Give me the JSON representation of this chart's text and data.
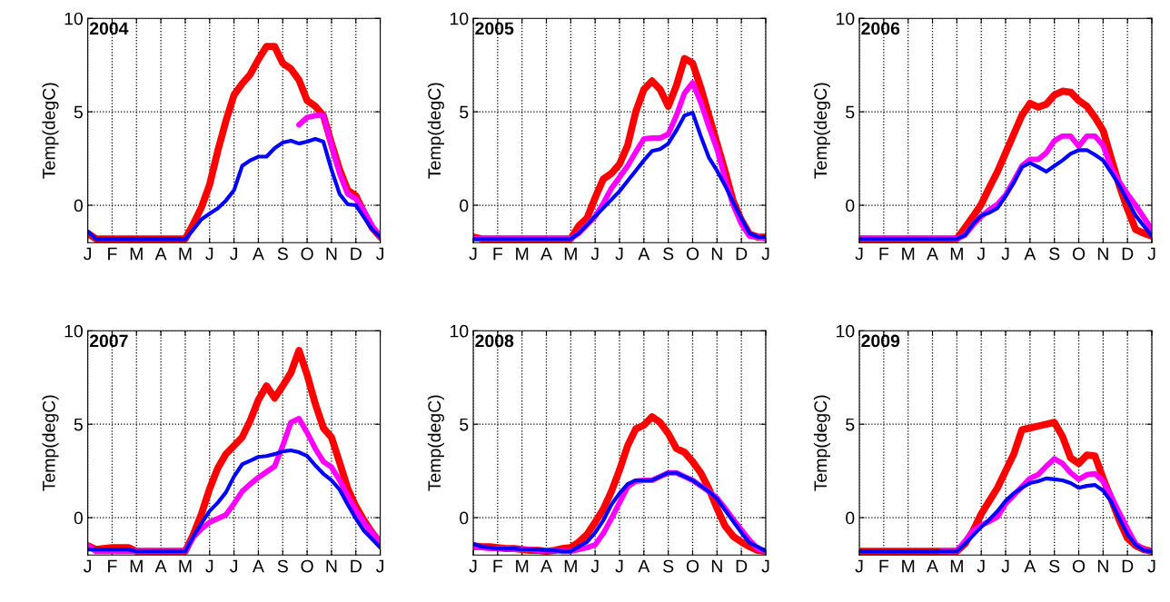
{
  "chart_data": [
    {
      "type": "line",
      "annotations": [
        "2004"
      ],
      "ylabel": "Temp(degC)",
      "ylim": [
        -2,
        10
      ],
      "yticks": [
        0,
        5,
        10
      ],
      "grid": true,
      "line_style": "solid",
      "categories": [
        "J",
        null,
        null,
        "F",
        null,
        null,
        "M",
        null,
        null,
        "A",
        null,
        null,
        "M",
        null,
        null,
        "J",
        null,
        null,
        "J",
        null,
        null,
        "A",
        null,
        null,
        "S",
        null,
        null,
        "O",
        null,
        null,
        "N",
        null,
        null,
        "D",
        null,
        null,
        "J"
      ],
      "series": [
        {
          "color": "#ff0000",
          "values": [
            -1.5,
            -1.8,
            -1.8,
            -1.8,
            -1.8,
            -1.8,
            -1.8,
            -1.8,
            -1.8,
            -1.8,
            -1.8,
            -1.8,
            -1.8,
            -1.0,
            -0.1,
            1.1,
            2.9,
            4.5,
            5.9,
            6.5,
            7.0,
            7.8,
            8.5,
            8.5,
            7.6,
            7.3,
            6.7,
            5.6,
            5.3,
            4.8,
            3.3,
            1.9,
            0.8,
            0.5,
            -0.4,
            -1.2,
            -1.7
          ]
        },
        {
          "color": "#ff00ff",
          "values": [
            null,
            null,
            null,
            null,
            null,
            null,
            null,
            null,
            null,
            null,
            null,
            null,
            null,
            null,
            null,
            null,
            null,
            null,
            null,
            null,
            null,
            null,
            null,
            null,
            null,
            null,
            4.3,
            4.7,
            4.8,
            4.8,
            3.2,
            1.7,
            0.6,
            0.35,
            -0.3,
            -1.1,
            -1.7
          ]
        },
        {
          "color": "#0000ff",
          "values": [
            -1.4,
            -1.8,
            -1.8,
            -1.8,
            -1.8,
            -1.8,
            -1.8,
            -1.8,
            -1.8,
            -1.8,
            -1.8,
            -1.8,
            -1.8,
            -1.3,
            -0.75,
            -0.45,
            -0.17,
            0.25,
            0.8,
            2.1,
            2.4,
            2.6,
            2.6,
            3.05,
            3.35,
            3.45,
            3.3,
            3.4,
            3.55,
            3.4,
            1.9,
            0.6,
            0.05,
            0.0,
            -0.65,
            -1.3,
            -1.7
          ]
        }
      ]
    },
    {
      "type": "line",
      "annotations": [
        "2005"
      ],
      "ylabel": "Temp(degC)",
      "ylim": [
        -2,
        10
      ],
      "yticks": [
        0,
        5,
        10
      ],
      "grid": true,
      "line_style": "solid",
      "categories": [
        "J",
        null,
        null,
        "F",
        null,
        null,
        "M",
        null,
        null,
        "A",
        null,
        null,
        "M",
        null,
        null,
        "J",
        null,
        null,
        "J",
        null,
        null,
        "A",
        null,
        null,
        "S",
        null,
        null,
        "O",
        null,
        null,
        "N",
        null,
        null,
        "D",
        null,
        null,
        "J"
      ],
      "series": [
        {
          "color": "#ff0000",
          "values": [
            -1.7,
            -1.8,
            -1.8,
            -1.8,
            -1.8,
            -1.8,
            -1.8,
            -1.8,
            -1.8,
            -1.8,
            -1.8,
            -1.8,
            -1.8,
            -1.1,
            -0.7,
            0.4,
            1.4,
            1.7,
            2.2,
            3.2,
            5.0,
            6.2,
            6.65,
            6.2,
            5.3,
            6.4,
            7.85,
            7.6,
            6.3,
            4.8,
            3.3,
            1.8,
            0.2,
            -0.8,
            -1.55,
            -1.7,
            -1.7
          ]
        },
        {
          "color": "#ff00ff",
          "values": [
            -1.8,
            -1.8,
            -1.8,
            -1.8,
            -1.8,
            -1.8,
            -1.8,
            -1.8,
            -1.8,
            -1.8,
            -1.8,
            -1.8,
            -1.8,
            -1.5,
            -1.05,
            -0.6,
            0.1,
            0.9,
            1.5,
            2.1,
            2.85,
            3.55,
            3.6,
            3.6,
            3.8,
            4.8,
            6.0,
            6.55,
            5.5,
            4.2,
            3.0,
            1.4,
            0.0,
            -1.0,
            -1.65,
            -1.7,
            -1.8
          ]
        },
        {
          "color": "#0000ff",
          "values": [
            -1.8,
            -1.8,
            -1.8,
            -1.8,
            -1.8,
            -1.8,
            -1.8,
            -1.8,
            -1.8,
            -1.8,
            -1.8,
            -1.8,
            -1.8,
            -1.5,
            -1.05,
            -0.6,
            -0.15,
            0.3,
            0.75,
            1.3,
            1.85,
            2.4,
            2.9,
            3.0,
            3.3,
            4.0,
            4.8,
            4.95,
            3.7,
            2.55,
            1.85,
            1.05,
            0.15,
            -0.7,
            -1.5,
            -1.7,
            -1.7
          ]
        }
      ]
    },
    {
      "type": "line",
      "annotations": [
        "2006"
      ],
      "ylabel": "Temp(degC)",
      "ylim": [
        -2,
        10
      ],
      "yticks": [
        0,
        5,
        10
      ],
      "grid": true,
      "line_style": "solid",
      "categories": [
        "J",
        null,
        null,
        "F",
        null,
        null,
        "M",
        null,
        null,
        "A",
        null,
        null,
        "M",
        null,
        null,
        "J",
        null,
        null,
        "J",
        null,
        null,
        "A",
        null,
        null,
        "S",
        null,
        null,
        "O",
        null,
        null,
        "N",
        null,
        null,
        "D",
        null,
        null,
        "J"
      ],
      "series": [
        {
          "color": "#ff0000",
          "values": [
            -1.8,
            -1.8,
            -1.8,
            -1.8,
            -1.8,
            -1.8,
            -1.8,
            -1.8,
            -1.8,
            -1.8,
            -1.8,
            -1.8,
            -1.8,
            -1.2,
            -0.6,
            0.05,
            0.95,
            1.8,
            2.8,
            3.8,
            4.8,
            5.45,
            5.25,
            5.4,
            5.9,
            6.1,
            6.05,
            5.6,
            5.3,
            4.7,
            4.0,
            2.5,
            1.05,
            -0.2,
            -1.3,
            -1.5,
            -1.65
          ]
        },
        {
          "color": "#ff00ff",
          "values": [
            -1.8,
            -1.8,
            -1.8,
            -1.8,
            -1.8,
            -1.8,
            -1.8,
            -1.8,
            -1.8,
            -1.8,
            -1.8,
            -1.8,
            -1.8,
            -1.6,
            -1.05,
            -0.6,
            -0.25,
            0.05,
            0.55,
            1.3,
            2.1,
            2.45,
            2.45,
            2.8,
            3.45,
            3.7,
            3.7,
            3.15,
            3.7,
            3.7,
            3.2,
            2.0,
            1.25,
            0.6,
            0.0,
            -0.65,
            -1.3
          ]
        },
        {
          "color": "#0000ff",
          "values": [
            -1.8,
            -1.8,
            -1.8,
            -1.8,
            -1.8,
            -1.8,
            -1.8,
            -1.8,
            -1.8,
            -1.8,
            -1.8,
            -1.8,
            -1.8,
            -1.6,
            -1.0,
            -0.55,
            -0.4,
            -0.15,
            0.5,
            1.2,
            2.05,
            2.25,
            2.05,
            1.8,
            2.1,
            2.4,
            2.75,
            2.95,
            2.95,
            2.7,
            2.4,
            1.75,
            1.05,
            0.25,
            -0.55,
            -1.1,
            -1.65
          ]
        }
      ]
    },
    {
      "type": "line",
      "annotations": [
        "2007"
      ],
      "ylabel": "Temp(degC)",
      "ylim": [
        -2,
        10
      ],
      "yticks": [
        0,
        5,
        10
      ],
      "grid": true,
      "line_style": "solid",
      "categories": [
        "J",
        null,
        null,
        "F",
        null,
        null,
        "M",
        null,
        null,
        "A",
        null,
        null,
        "M",
        null,
        null,
        "J",
        null,
        null,
        "J",
        null,
        null,
        "A",
        null,
        null,
        "S",
        null,
        null,
        "O",
        null,
        null,
        "N",
        null,
        null,
        "D",
        null,
        null,
        "J"
      ],
      "series": [
        {
          "color": "#ff0000",
          "values": [
            -1.5,
            -1.7,
            -1.65,
            -1.6,
            -1.6,
            -1.6,
            -1.8,
            -1.8,
            -1.8,
            -1.8,
            -1.8,
            -1.8,
            -1.8,
            -0.9,
            0.2,
            1.55,
            2.65,
            3.4,
            3.85,
            4.3,
            5.2,
            6.3,
            7.05,
            6.4,
            7.05,
            7.75,
            8.95,
            7.65,
            6.1,
            4.8,
            4.3,
            2.95,
            1.55,
            0.6,
            -0.15,
            -0.8,
            -1.35
          ]
        },
        {
          "color": "#ff00ff",
          "values": [
            -1.5,
            -1.8,
            -1.8,
            -1.8,
            -1.8,
            -1.8,
            -1.8,
            -1.8,
            -1.8,
            -1.8,
            -1.8,
            -1.8,
            -1.8,
            -1.05,
            -0.6,
            -0.25,
            -0.05,
            0.15,
            0.75,
            1.4,
            1.8,
            2.15,
            2.45,
            2.75,
            3.85,
            5.1,
            5.3,
            4.55,
            3.7,
            3.0,
            2.7,
            2.0,
            1.15,
            0.4,
            -0.25,
            -0.8,
            -1.35
          ]
        },
        {
          "color": "#0000ff",
          "values": [
            -1.7,
            -1.7,
            -1.7,
            -1.7,
            -1.7,
            -1.7,
            -1.8,
            -1.8,
            -1.8,
            -1.8,
            -1.8,
            -1.8,
            -1.8,
            -1.0,
            -0.3,
            0.35,
            0.8,
            1.35,
            2.2,
            2.85,
            3.05,
            3.25,
            3.3,
            3.4,
            3.55,
            3.6,
            3.5,
            3.3,
            2.8,
            2.35,
            2.0,
            1.5,
            0.7,
            -0.05,
            -0.7,
            -1.15,
            -1.6
          ]
        }
      ]
    },
    {
      "type": "line",
      "annotations": [
        "2008"
      ],
      "ylabel": "Temp(degC)",
      "ylim": [
        -2,
        10
      ],
      "yticks": [
        0,
        5,
        10
      ],
      "grid": true,
      "line_style": "solid",
      "categories": [
        "J",
        null,
        null,
        "F",
        null,
        null,
        "M",
        null,
        null,
        "A",
        null,
        null,
        "M",
        null,
        null,
        "J",
        null,
        null,
        "J",
        null,
        null,
        "A",
        null,
        null,
        "S",
        null,
        null,
        "O",
        null,
        null,
        "N",
        null,
        null,
        "D",
        null,
        null,
        "J"
      ],
      "series": [
        {
          "color": "#ff0000",
          "values": [
            -1.5,
            -1.55,
            -1.55,
            -1.6,
            -1.65,
            -1.65,
            -1.7,
            -1.75,
            -1.75,
            -1.8,
            -1.75,
            -1.65,
            -1.6,
            -1.3,
            -0.9,
            -0.25,
            0.45,
            1.4,
            2.55,
            3.85,
            4.75,
            4.95,
            5.4,
            5.1,
            4.5,
            3.7,
            3.5,
            3.0,
            2.4,
            1.55,
            0.5,
            -0.45,
            -1.0,
            -1.3,
            -1.55,
            -1.75,
            -1.8
          ]
        },
        {
          "color": "#ff00ff",
          "values": [
            -1.6,
            -1.6,
            -1.65,
            -1.65,
            -1.65,
            -1.7,
            -1.7,
            -1.7,
            -1.75,
            -1.75,
            -1.75,
            -1.8,
            -1.8,
            -1.7,
            -1.6,
            -1.45,
            -0.85,
            -0.05,
            0.8,
            1.65,
            1.95,
            2.0,
            2.0,
            2.2,
            2.4,
            2.4,
            2.2,
            2.0,
            1.7,
            1.4,
            1.05,
            0.5,
            -0.1,
            -0.65,
            -1.2,
            -1.65,
            -1.8
          ]
        },
        {
          "color": "#0000ff",
          "values": [
            -1.4,
            -1.55,
            -1.6,
            -1.65,
            -1.65,
            -1.65,
            -1.7,
            -1.7,
            -1.7,
            -1.75,
            -1.75,
            -1.8,
            -1.8,
            -1.55,
            -1.3,
            -0.8,
            -0.15,
            0.7,
            1.3,
            1.8,
            2.0,
            2.0,
            2.0,
            2.2,
            2.4,
            2.4,
            2.2,
            2.0,
            1.7,
            1.4,
            1.0,
            0.4,
            -0.2,
            -0.8,
            -1.35,
            -1.55,
            -1.8
          ]
        }
      ]
    },
    {
      "type": "line",
      "annotations": [
        "2009"
      ],
      "ylabel": "Temp(degC)",
      "ylim": [
        -2,
        10
      ],
      "yticks": [
        0,
        5,
        10
      ],
      "grid": true,
      "line_style": "solid",
      "categories": [
        "J",
        null,
        null,
        "F",
        null,
        null,
        "M",
        null,
        null,
        "A",
        null,
        null,
        "M",
        null,
        null,
        "J",
        null,
        null,
        "J",
        null,
        null,
        "A",
        null,
        null,
        "S",
        null,
        null,
        "O",
        null,
        null,
        "N",
        null,
        null,
        "D",
        null,
        null,
        "J"
      ],
      "series": [
        {
          "color": "#ff0000",
          "values": [
            -1.8,
            -1.8,
            -1.8,
            -1.8,
            -1.8,
            -1.8,
            -1.8,
            -1.8,
            -1.8,
            -1.8,
            -1.8,
            -1.8,
            -1.8,
            -1.4,
            -0.7,
            0.2,
            0.9,
            1.6,
            2.5,
            3.4,
            4.7,
            4.8,
            4.9,
            5.0,
            5.1,
            4.35,
            3.2,
            2.9,
            3.35,
            3.3,
            2.1,
            1.0,
            -0.15,
            -1.1,
            -1.5,
            -1.7,
            -1.8
          ]
        },
        {
          "color": "#ff00ff",
          "values": [
            null,
            null,
            null,
            null,
            null,
            null,
            null,
            null,
            null,
            null,
            -1.8,
            -1.8,
            -1.8,
            -1.25,
            -0.7,
            -0.4,
            -0.2,
            0.05,
            0.75,
            1.2,
            1.65,
            2.1,
            2.3,
            2.75,
            3.15,
            2.9,
            2.4,
            2.05,
            2.3,
            2.35,
            1.95,
            1.15,
            0.25,
            -0.6,
            -1.4,
            -1.7,
            -1.8
          ]
        },
        {
          "color": "#0000ff",
          "values": [
            -1.8,
            -1.8,
            -1.8,
            -1.8,
            -1.8,
            -1.8,
            -1.8,
            -1.8,
            -1.8,
            -1.8,
            -1.8,
            -1.8,
            -1.8,
            -1.4,
            -0.95,
            -0.5,
            -0.1,
            0.35,
            0.9,
            1.3,
            1.6,
            1.85,
            1.95,
            2.1,
            2.05,
            2.0,
            1.85,
            1.6,
            1.7,
            1.75,
            1.45,
            0.85,
            -0.05,
            -0.9,
            -1.45,
            -1.75,
            -1.8
          ]
        }
      ]
    }
  ]
}
